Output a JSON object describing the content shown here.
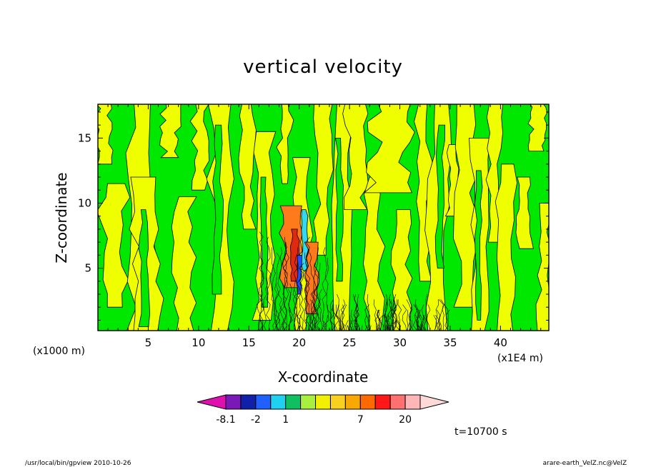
{
  "chart_data": {
    "type": "heatmap",
    "title": "vertical velocity",
    "xlabel": "X-coordinate",
    "ylabel": "Z-coordinate",
    "x_unit_left": "(x1000 m)",
    "x_unit_right": "(x1E4 m)",
    "xlim": [
      0,
      44.8
    ],
    "ylim": [
      0.2,
      17.6
    ],
    "x_ticks": [
      5,
      10,
      15,
      20,
      25,
      30,
      35,
      40
    ],
    "y_ticks": [
      5,
      10,
      15
    ],
    "grid": false,
    "colorbar": {
      "colors": [
        "#e010b0",
        "#7a18b8",
        "#1020a8",
        "#2060ff",
        "#20d0f0",
        "#10c060",
        "#a8f040",
        "#f0f000",
        "#f8d020",
        "#f8a800",
        "#ff6a00",
        "#ff1818",
        "#ff7070",
        "#ffb6b6",
        "#ffd8d8"
      ],
      "labels": [
        "-8.1",
        "-2",
        "1",
        "7",
        "20"
      ],
      "label_slots": [
        1,
        3,
        5,
        10,
        13
      ]
    },
    "time_label": "t=10700 s",
    "field_colors": {
      "positive": "#f0ff00",
      "negative": "#00e800",
      "contour": "#000000",
      "updraft": "#ff7a1a",
      "strong_up": "#e02a10",
      "downdraft": "#2050ff",
      "cyan": "#30d8f0"
    }
  },
  "footer": {
    "left": "/usr/local/bin/gpview   2010-10-26",
    "right": "arare-earth_VelZ.nc@VelZ"
  }
}
